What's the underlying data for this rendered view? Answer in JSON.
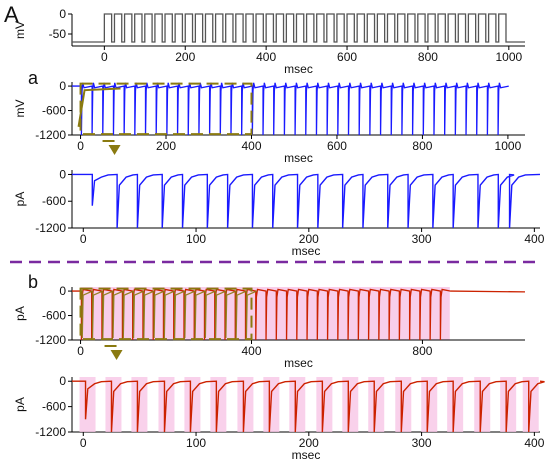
{
  "panel_labels": {
    "figure": "A",
    "a": "a",
    "b": "b"
  },
  "colors": {
    "protocol": "#555555",
    "voltage_trace": "#1a1aff",
    "current_trace": "#1a1aff",
    "overlay_olive": "#8a7a10",
    "red_trace": "#cc2200",
    "pink_band": "#f7c6e6",
    "divider": "#7a2aa0",
    "axis": "#000000"
  },
  "chart_data": [
    {
      "id": "protocol",
      "type": "line",
      "ylabel": "mV",
      "xlabel": "msec",
      "xlim": [
        -80,
        1040
      ],
      "ylim": [
        -80,
        0
      ],
      "yticks": [
        0,
        -50
      ],
      "xticks": [
        0,
        200,
        400,
        600,
        800,
        1000
      ],
      "pulse_start": 0,
      "pulse_end": 1000,
      "pulse_count": 40,
      "pulse_high": 0,
      "holding": -70
    },
    {
      "id": "a_voltage",
      "type": "line",
      "ylabel": "mV",
      "xlabel": "msec",
      "xlim": [
        -20,
        1040
      ],
      "ylim": [
        -1200,
        100
      ],
      "yticks": [
        0,
        -600,
        -1200
      ],
      "xticks": [
        0,
        200,
        400,
        600,
        800,
        1000
      ],
      "spike_count": 40,
      "spike_peak": 0,
      "spike_trough": -1200,
      "zoom_box": [
        0,
        400
      ]
    },
    {
      "id": "a_current",
      "type": "line",
      "ylabel": "pA",
      "xlabel": "msec",
      "xlim": [
        -10,
        405
      ],
      "ylim": [
        -1200,
        100
      ],
      "yticks": [
        0,
        -600,
        -1200
      ],
      "xticks": [
        0,
        100,
        200,
        300,
        400
      ],
      "spike_times": [
        8,
        30,
        48,
        70,
        88,
        110,
        128,
        150,
        168,
        190,
        208,
        230,
        248,
        270,
        288,
        310,
        328,
        350,
        368,
        378
      ],
      "first_spike_depth": -700
    },
    {
      "id": "b_current",
      "type": "line",
      "ylabel": "pA",
      "xlabel": "msec",
      "xlim": [
        -20,
        1040
      ],
      "ylim": [
        -1200,
        100
      ],
      "yticks": [
        0,
        -600,
        -1200
      ],
      "xticks": [
        0,
        400,
        800
      ],
      "spike_count": 36,
      "spike_trough": -1200,
      "zoom_box": [
        0,
        400
      ]
    },
    {
      "id": "b_zoom",
      "type": "line",
      "ylabel": "pA",
      "xlabel": "msec",
      "xlim": [
        -10,
        405
      ],
      "ylim": [
        -1200,
        100
      ],
      "yticks": [
        0,
        -600,
        -1200
      ],
      "xticks": [
        0,
        100,
        200,
        300,
        400
      ],
      "spike_times": [
        2,
        25,
        48,
        72,
        95,
        118,
        142,
        165,
        188,
        212,
        235,
        258,
        282,
        305,
        328,
        352,
        375,
        395
      ],
      "first_spike_depth": -900
    }
  ]
}
